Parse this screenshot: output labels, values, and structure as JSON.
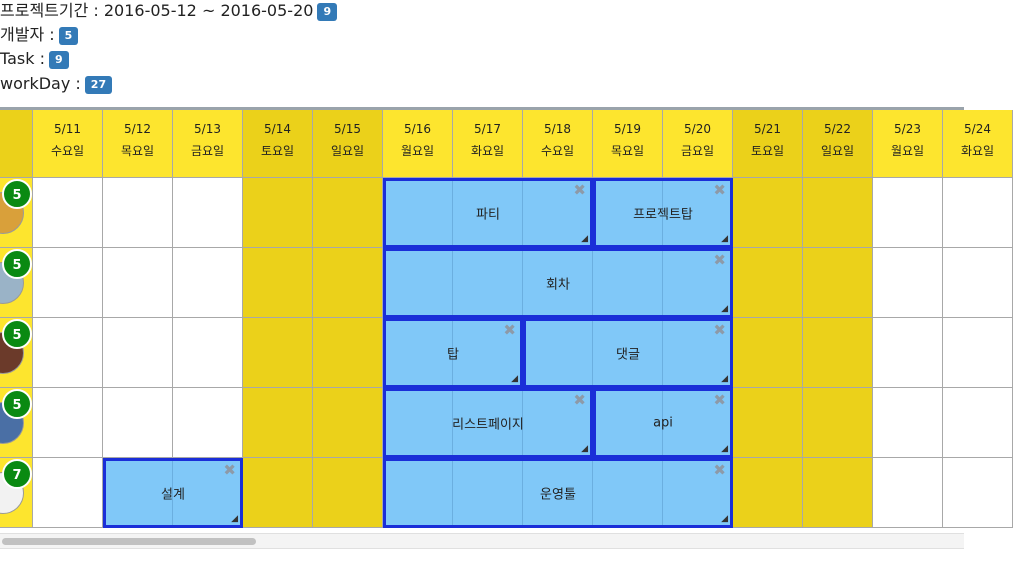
{
  "info": {
    "period_label": "프로젝트기간 : 2016-05-12 ~ 2016-05-20",
    "period_badge": "9",
    "dev_label": "개발자 :",
    "dev_badge": "5",
    "task_label": "Task :",
    "task_badge": "9",
    "workday_label": "workDay :",
    "workday_badge": "27"
  },
  "days": [
    {
      "date": "5/11",
      "dow": "수요일",
      "weekend": false
    },
    {
      "date": "5/12",
      "dow": "목요일",
      "weekend": false
    },
    {
      "date": "5/13",
      "dow": "금요일",
      "weekend": false
    },
    {
      "date": "5/14",
      "dow": "토요일",
      "weekend": true
    },
    {
      "date": "5/15",
      "dow": "일요일",
      "weekend": true
    },
    {
      "date": "5/16",
      "dow": "월요일",
      "weekend": false
    },
    {
      "date": "5/17",
      "dow": "화요일",
      "weekend": false
    },
    {
      "date": "5/18",
      "dow": "수요일",
      "weekend": false
    },
    {
      "date": "5/19",
      "dow": "목요일",
      "weekend": false
    },
    {
      "date": "5/20",
      "dow": "금요일",
      "weekend": false
    },
    {
      "date": "5/21",
      "dow": "토요일",
      "weekend": true
    },
    {
      "date": "5/22",
      "dow": "일요일",
      "weekend": true
    },
    {
      "date": "5/23",
      "dow": "월요일",
      "weekend": false
    },
    {
      "date": "5/24",
      "dow": "화요일",
      "weekend": false
    }
  ],
  "developers": [
    {
      "count": "5",
      "avatar_color": "#d9a03a"
    },
    {
      "count": "5",
      "avatar_color": "#9ab3c7"
    },
    {
      "count": "5",
      "avatar_color": "#6b3a2a"
    },
    {
      "count": "5",
      "avatar_color": "#4a6fa5"
    },
    {
      "count": "7",
      "avatar_color": "#f2f2f2"
    }
  ],
  "tasks": [
    {
      "row": 0,
      "start": 5,
      "span": 3,
      "label": "파티"
    },
    {
      "row": 0,
      "start": 8,
      "span": 2,
      "label": "프로젝트탑"
    },
    {
      "row": 1,
      "start": 5,
      "span": 5,
      "label": "회차"
    },
    {
      "row": 2,
      "start": 5,
      "span": 2,
      "label": "탑"
    },
    {
      "row": 2,
      "start": 7,
      "span": 3,
      "label": "댓글"
    },
    {
      "row": 3,
      "start": 5,
      "span": 3,
      "label": "리스트페이지"
    },
    {
      "row": 3,
      "start": 8,
      "span": 2,
      "label": "api"
    },
    {
      "row": 4,
      "start": 1,
      "span": 2,
      "label": "설계"
    },
    {
      "row": 4,
      "start": 5,
      "span": 5,
      "label": "운영툴"
    }
  ],
  "icons": {
    "close": "✖",
    "resize": "◢"
  },
  "colors": {
    "weekday_header": "#fde52e",
    "weekend": "#ebd11a",
    "task_fill": "#80c8f8",
    "task_border": "#1a2ed8",
    "badge": "#337ab7",
    "count_badge": "#0a8a12"
  }
}
